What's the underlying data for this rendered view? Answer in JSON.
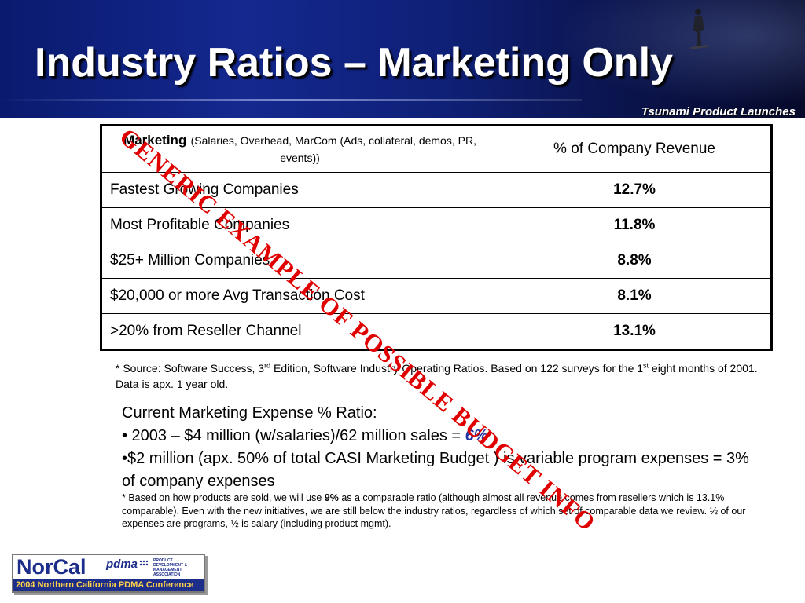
{
  "title": "Industry Ratios – Marketing Only",
  "subtitle": "Tsunami Product Launches",
  "table": {
    "header": {
      "label_bold": "Marketing",
      "label_detail": "(Salaries, Overhead, MarCom (Ads, collateral, demos, PR, events))",
      "value_header": "% of Company Revenue"
    },
    "rows": [
      {
        "label": "Fastest Growing Companies",
        "value": "12.7%"
      },
      {
        "label": "Most Profitable Companies",
        "value": "11.8%"
      },
      {
        "label": "$25+ Million Companies",
        "value": "8.8%"
      },
      {
        "label": "$20,000 or more Avg Transaction Cost",
        "value": "8.1%"
      },
      {
        "label": ">20% from Reseller Channel",
        "value": "13.1%"
      }
    ]
  },
  "source": {
    "part1": "* Source: Software Success, 3",
    "sup1": "rd",
    "part2": " Edition, Software Industry Operating Ratios. Based on 122 surveys for the 1",
    "sup2": "st",
    "part3": " eight months of 2001.  Data is apx. 1 year old."
  },
  "current": {
    "heading": "Current Marketing Expense % Ratio:",
    "bullet1_text": "• 2003 – $4 million (w/salaries)/62 million sales = ",
    "bullet1_highlight": "6%",
    "bullet2": "•$2 million (apx. 50% of total CASI Marketing Budget ) is variable  program expenses = 3% of company expenses"
  },
  "note": {
    "part1": "* Based on how products are sold, we will use ",
    "bold": "9%",
    "part2": " as a comparable ratio (although almost all revenue comes from resellers which is 13.1% comparable).  Even with the new initiatives, we are still below the industry ratios, regardless of which set of comparable data we review. ½ of our expenses are programs, ½ is salary (including product mgmt)."
  },
  "stamp": "GENERIC EXAMPLE OF POSSIBLE BUDGET INFO",
  "logo": {
    "name": "NorCal",
    "pdma": "pdma",
    "association": "PRODUCT DEVELOPMENT & MANAGEMENT ASSOCIATION",
    "banner": "2004 Northern California PDMA Conference"
  },
  "colors": {
    "header_blue": "#14288f",
    "stamp_red": "#e00000",
    "highlight_blue": "#2233a0",
    "logo_blue": "#1c2d8a",
    "logo_yellow": "#ffd24a"
  }
}
